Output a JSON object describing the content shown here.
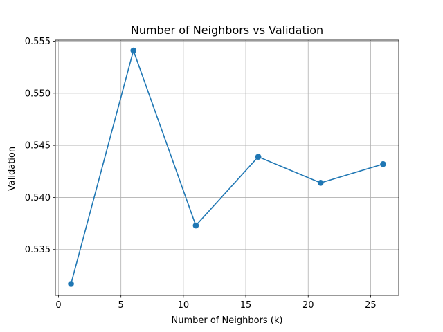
{
  "chart_data": {
    "type": "line",
    "title": "Number of Neighbors vs Validation",
    "xlabel": "Number of Neighbors (k)",
    "ylabel": "Validation",
    "xlim": [
      -0.25,
      27.25
    ],
    "ylim": [
      0.5306,
      0.5551
    ],
    "xticks": [
      0,
      5,
      10,
      15,
      20,
      25
    ],
    "yticks": [
      0.535,
      0.54,
      0.545,
      0.55,
      0.555
    ],
    "ytick_labels": [
      "0.535",
      "0.540",
      "0.545",
      "0.550",
      "0.555"
    ],
    "grid": true,
    "series": [
      {
        "color": "#1f77b4",
        "marker": "circle",
        "x": [
          1,
          6,
          11,
          16,
          21,
          26
        ],
        "y": [
          0.5317,
          0.5541,
          0.5373,
          0.5439,
          0.5414,
          0.5432
        ]
      }
    ]
  }
}
